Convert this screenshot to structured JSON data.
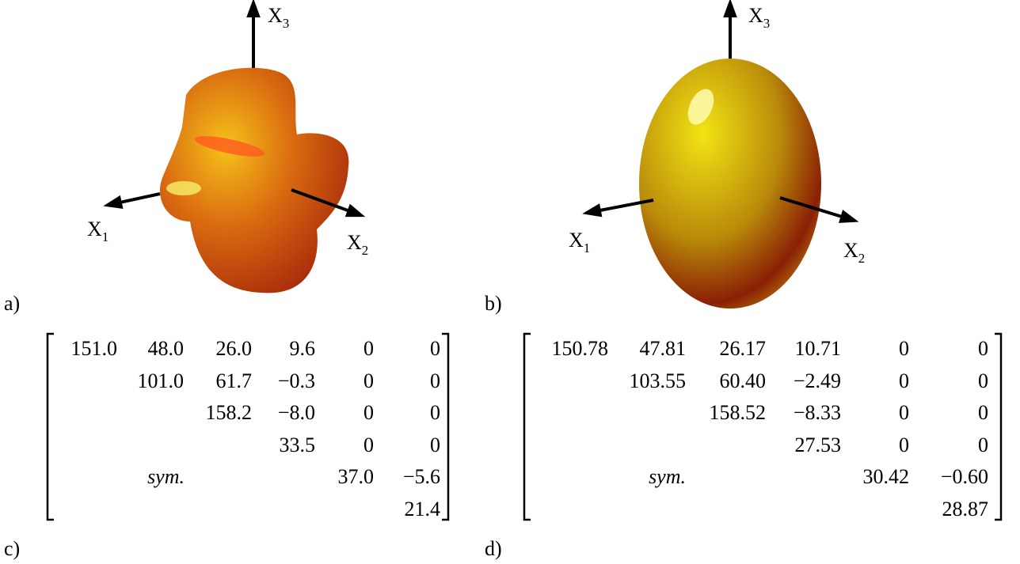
{
  "panels": [
    {
      "label": "a)",
      "axes": [
        {
          "letter": "X",
          "index": "1"
        },
        {
          "letter": "X",
          "index": "2"
        },
        {
          "letter": "X",
          "index": "3"
        }
      ]
    },
    {
      "label": "b)",
      "axes": [
        {
          "letter": "X",
          "index": "1"
        },
        {
          "letter": "X",
          "index": "2"
        },
        {
          "letter": "X",
          "index": "3"
        }
      ]
    },
    {
      "label": "c)",
      "sym": "sym.",
      "rows": [
        [
          "151.0",
          "48.0",
          "26.0",
          "9.6",
          "0",
          "0"
        ],
        [
          "101.0",
          "61.7",
          "−0.3",
          "0",
          "0"
        ],
        [
          "158.2",
          "−8.0",
          "0",
          "0"
        ],
        [
          "33.5",
          "0",
          "0"
        ],
        [
          "37.0",
          "−5.6"
        ],
        [
          "21.4"
        ]
      ]
    },
    {
      "label": "d)",
      "sym": "sym.",
      "rows": [
        [
          "150.78",
          "47.81",
          "26.17",
          "10.71",
          "0",
          "0"
        ],
        [
          "103.55",
          "60.40",
          "−2.49",
          "0",
          "0"
        ],
        [
          "158.52",
          "−8.33",
          "0",
          "0"
        ],
        [
          "27.53",
          "0",
          "0"
        ],
        [
          "30.42",
          "−0.60"
        ],
        [
          "28.87"
        ]
      ]
    }
  ]
}
